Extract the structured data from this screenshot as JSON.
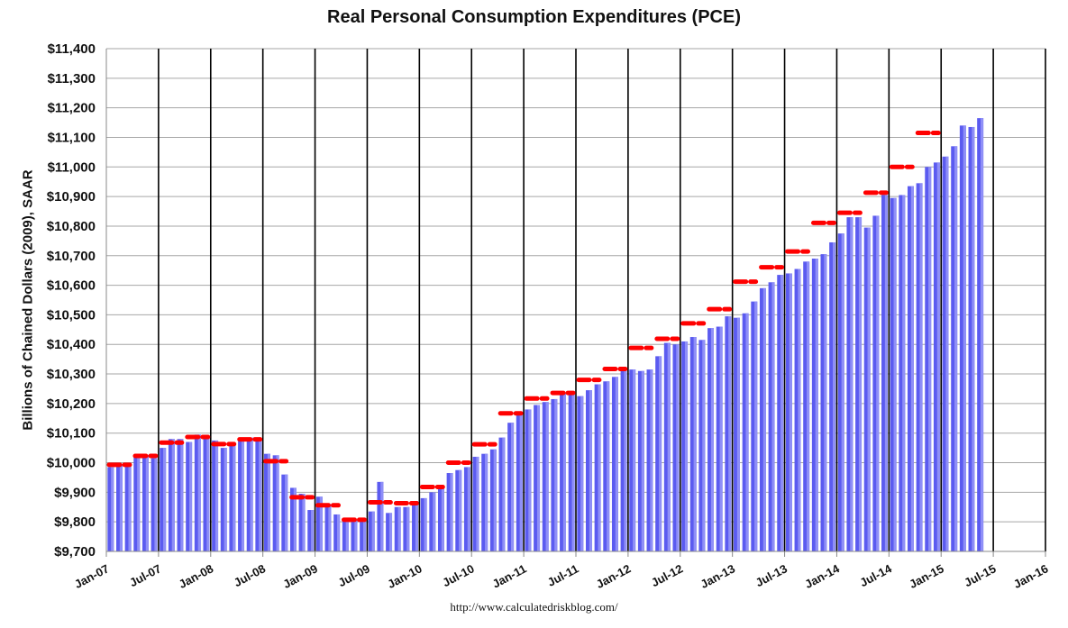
{
  "chart_data": {
    "type": "bar",
    "title": "Real Personal Consumption Expenditures (PCE)",
    "ylabel": "Billions of Chained Dollars (2009), SAAR",
    "xlabel": "",
    "source": "http://www.calculatedriskblog.com/",
    "ylim": [
      9700,
      11400
    ],
    "y_ticks": [
      9700,
      9800,
      9900,
      10000,
      10100,
      10200,
      10300,
      10400,
      10500,
      10600,
      10700,
      10800,
      10900,
      11000,
      11100,
      11200,
      11300,
      11400
    ],
    "y_tick_labels": [
      "$9,700",
      "$9,800",
      "$9,900",
      "$10,000",
      "$10,100",
      "$10,200",
      "$10,300",
      "$10,400",
      "$10,500",
      "$10,600",
      "$10,700",
      "$10,800",
      "$10,900",
      "$11,000",
      "$11,100",
      "$11,200",
      "$11,300",
      "$11,400"
    ],
    "x_tick_labels": [
      "Jan-07",
      "Jul-07",
      "Jan-08",
      "Jul-08",
      "Jan-09",
      "Jul-09",
      "Jan-10",
      "Jul-10",
      "Jan-11",
      "Jul-11",
      "Jan-12",
      "Jul-12",
      "Jan-13",
      "Jul-13",
      "Jan-14",
      "Jul-14",
      "Jan-15",
      "Jul-15",
      "Jan-16"
    ],
    "x_range_months": [
      "Jan-07",
      "Jan-16"
    ],
    "grid": true,
    "series": [
      {
        "color": "#5b5bf0",
        "start": "Jan-07",
        "values": [
          9985,
          9995,
          10000,
          10020,
          10025,
          10015,
          10050,
          10080,
          10080,
          10070,
          10095,
          10090,
          10075,
          10050,
          10065,
          10080,
          10085,
          10075,
          10030,
          10025,
          9960,
          9915,
          9895,
          9840,
          9885,
          9860,
          9825,
          9810,
          9805,
          9800,
          9835,
          9935,
          9830,
          9850,
          9850,
          9870,
          9880,
          9900,
          9915,
          9965,
          9975,
          9985,
          10020,
          10030,
          10045,
          10085,
          10135,
          10170,
          10180,
          10195,
          10205,
          10215,
          10235,
          10230,
          10225,
          10245,
          10265,
          10275,
          10290,
          10310,
          10315,
          10310,
          10315,
          10360,
          10405,
          10400,
          10410,
          10425,
          10415,
          10455,
          10460,
          10495,
          10490,
          10505,
          10545,
          10590,
          10610,
          10635,
          10640,
          10655,
          10680,
          10690,
          10705,
          10745,
          10775,
          10830,
          10830,
          10795,
          10835,
          10905,
          10895,
          10905,
          10935,
          10945,
          11000,
          11015,
          11035,
          11070,
          11140,
          11135,
          11165
        ]
      },
      {
        "color": "#ff0000",
        "marker": "quarterly-average",
        "quarters": [
          "Q1-07",
          "Q2-07",
          "Q3-07",
          "Q4-07",
          "Q1-08",
          "Q2-08",
          "Q3-08",
          "Q4-08",
          "Q1-09",
          "Q2-09",
          "Q3-09",
          "Q4-09",
          "Q1-10",
          "Q2-10",
          "Q3-10",
          "Q4-10",
          "Q1-11",
          "Q2-11",
          "Q3-11",
          "Q4-11",
          "Q1-12",
          "Q2-12",
          "Q3-12",
          "Q4-12",
          "Q1-13",
          "Q2-13",
          "Q3-13",
          "Q4-13",
          "Q1-14",
          "Q2-14",
          "Q3-14",
          "Q4-14"
        ],
        "values": [
          9993,
          10023,
          10068,
          10087,
          10063,
          10079,
          10005,
          9883,
          9856,
          9807,
          9866,
          9863,
          9918,
          10000,
          10062,
          10167,
          10217,
          10236,
          10280,
          10317,
          10388,
          10419,
          10471,
          10519,
          10612,
          10661,
          10714,
          10811,
          10845,
          10913,
          11000,
          11115
        ]
      }
    ]
  }
}
